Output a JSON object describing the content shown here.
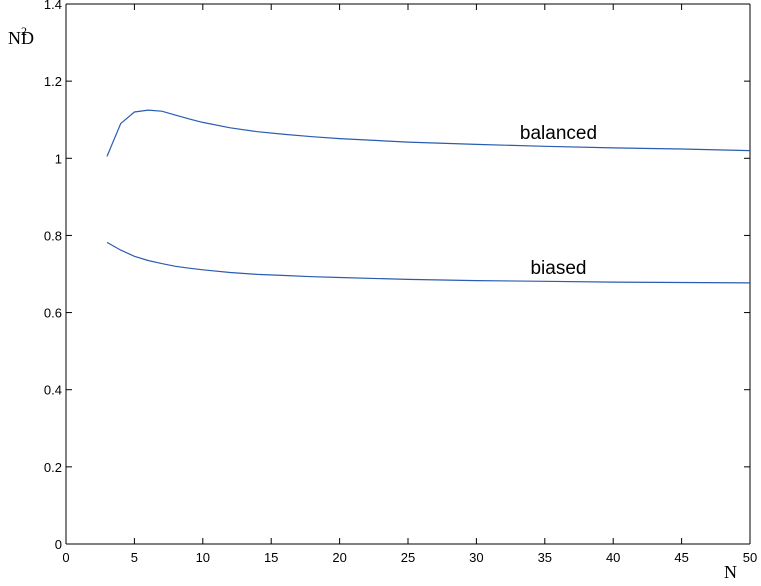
{
  "chart_data": {
    "type": "line",
    "xlabel": "N",
    "ylabel": "N²D",
    "ylabel_parts": {
      "base": "N",
      "sup": "2",
      "sub": "D"
    },
    "xlim": [
      0,
      50
    ],
    "ylim": [
      0,
      1.4
    ],
    "xticks": [
      0,
      5,
      10,
      15,
      20,
      25,
      30,
      35,
      40,
      45,
      50
    ],
    "yticks": [
      0,
      0.2,
      0.4,
      0.6,
      0.8,
      1,
      1.2,
      1.4
    ],
    "ytick_labels": [
      "0",
      "0.2",
      "0.4",
      "0.6",
      "0.8",
      "1",
      "1.2",
      "1.4"
    ],
    "grid": false,
    "line_color": "#2a5cb0",
    "series": [
      {
        "name": "balanced",
        "x": [
          3,
          4,
          5,
          6,
          7,
          8,
          9,
          10,
          12,
          14,
          16,
          18,
          20,
          25,
          30,
          35,
          40,
          45,
          50
        ],
        "y": [
          1.005,
          1.09,
          1.12,
          1.125,
          1.122,
          1.112,
          1.102,
          1.093,
          1.079,
          1.069,
          1.062,
          1.056,
          1.051,
          1.042,
          1.036,
          1.031,
          1.027,
          1.024,
          1.02
        ]
      },
      {
        "name": "biased",
        "x": [
          3,
          4,
          5,
          6,
          7,
          8,
          9,
          10,
          12,
          14,
          16,
          18,
          20,
          25,
          30,
          35,
          40,
          45,
          50
        ],
        "y": [
          0.782,
          0.762,
          0.746,
          0.735,
          0.727,
          0.72,
          0.715,
          0.711,
          0.704,
          0.699,
          0.696,
          0.693,
          0.691,
          0.686,
          0.683,
          0.681,
          0.679,
          0.678,
          0.677
        ]
      }
    ],
    "annotations": [
      {
        "text": "balanced",
        "x": 36,
        "y": 1.05
      },
      {
        "text": "biased",
        "x": 36,
        "y": 0.7
      }
    ]
  }
}
